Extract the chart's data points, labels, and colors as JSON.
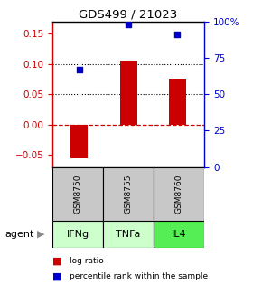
{
  "title": "GDS499 / 21023",
  "samples": [
    "GSM8750",
    "GSM8755",
    "GSM8760"
  ],
  "agents": [
    "IFNg",
    "TNFa",
    "IL4"
  ],
  "log_ratios": [
    -0.055,
    0.105,
    0.075
  ],
  "percentile_ranks": [
    67,
    98,
    91
  ],
  "bar_color": "#cc0000",
  "dot_color": "#0000cc",
  "ylim_left": [
    -0.07,
    0.17
  ],
  "ylim_right": [
    0,
    100
  ],
  "yticks_left": [
    -0.05,
    0,
    0.05,
    0.1,
    0.15
  ],
  "yticks_right": [
    0,
    25,
    50,
    75,
    100
  ],
  "hline_y": 0,
  "dotted_lines": [
    0.05,
    0.1
  ],
  "gray_box_color": "#c8c8c8",
  "green_colors": [
    "#ccffcc",
    "#ccffcc",
    "#55ee55"
  ],
  "agent_label": "agent",
  "legend_log": "log ratio",
  "legend_pct": "percentile rank within the sample",
  "bar_width": 0.35
}
